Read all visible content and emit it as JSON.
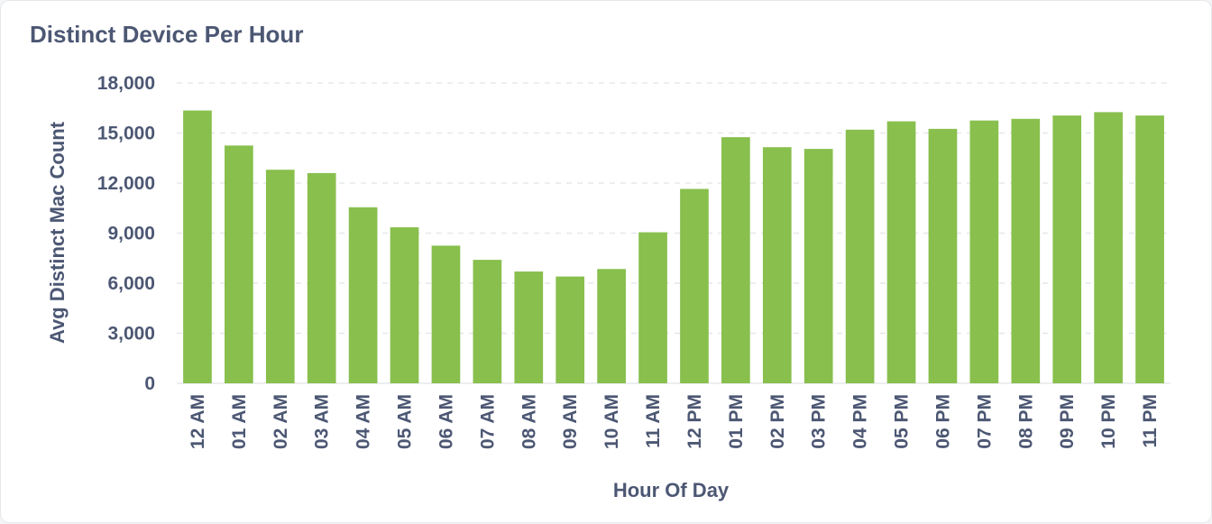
{
  "card": {
    "title": "Distinct Device Per Hour"
  },
  "colors": {
    "bar": "#88bf4d",
    "text": "#4c5773",
    "grid": "#e6e8eb"
  },
  "chart_data": {
    "type": "bar",
    "title": "Distinct Device Per Hour",
    "xlabel": "Hour Of Day",
    "ylabel": "Avg Distinct Mac Count",
    "ylim": [
      0,
      18000
    ],
    "yticks": [
      0,
      3000,
      6000,
      9000,
      12000,
      15000,
      18000
    ],
    "ytick_labels": [
      "0",
      "3,000",
      "6,000",
      "9,000",
      "12,000",
      "15,000",
      "18,000"
    ],
    "grid": true,
    "categories": [
      "12 AM",
      "01 AM",
      "02 AM",
      "03 AM",
      "04 AM",
      "05 AM",
      "06 AM",
      "07 AM",
      "08 AM",
      "09 AM",
      "10 AM",
      "11 AM",
      "12 PM",
      "01 PM",
      "02 PM",
      "03 PM",
      "04 PM",
      "05 PM",
      "06 PM",
      "07 PM",
      "08 PM",
      "09 PM",
      "10 PM",
      "11 PM"
    ],
    "values": [
      16350,
      14250,
      12800,
      12600,
      10550,
      9350,
      8250,
      7400,
      6700,
      6400,
      6850,
      9050,
      11650,
      14750,
      14150,
      14050,
      15200,
      15700,
      15250,
      15750,
      15850,
      16050,
      16250,
      16050
    ]
  }
}
